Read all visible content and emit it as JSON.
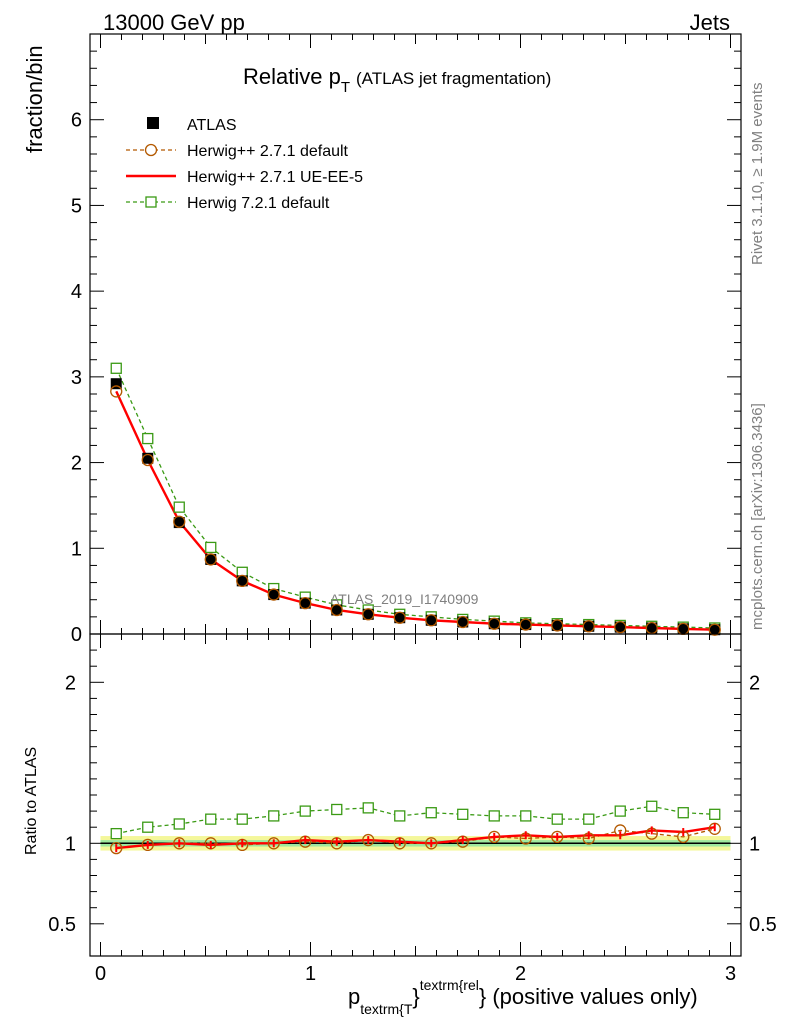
{
  "header": {
    "energy_label": "13000 GeV pp",
    "process_label": "Jets"
  },
  "side_labels": {
    "rivet": "Rivet 3.1.10, ≥ 1.9M events",
    "mcplots": "mcplots.cern.ch [arXiv:1306.3436]"
  },
  "chart_data": [
    {
      "type": "scatter",
      "title_main": "Relative p",
      "title_sub": "T",
      "title_rest": "(ATLAS jet fragmentation)",
      "analysis_label": "ATLAS_2019_I1740909",
      "ylabel": "fraction/bin",
      "xlim": [
        -0.05,
        3.05
      ],
      "ylim": [
        0,
        7
      ],
      "yticks": [
        0,
        1,
        2,
        3,
        4,
        5,
        6
      ],
      "ytick_labels": [
        "0",
        "1",
        "2",
        "3",
        "4",
        "5",
        "6"
      ],
      "x": [
        0.075,
        0.225,
        0.375,
        0.525,
        0.675,
        0.825,
        0.975,
        1.125,
        1.275,
        1.425,
        1.575,
        1.725,
        1.875,
        2.025,
        2.175,
        2.325,
        2.475,
        2.625,
        2.775,
        2.925
      ],
      "series": [
        {
          "name": "ATLAS",
          "color": "#000000",
          "values": [
            2.92,
            2.05,
            1.3,
            0.87,
            0.62,
            0.46,
            0.36,
            0.28,
            0.23,
            0.19,
            0.16,
            0.14,
            0.12,
            0.11,
            0.1,
            0.09,
            0.08,
            0.07,
            0.06,
            0.05
          ]
        },
        {
          "name": "Herwig++ 2.7.1 default",
          "color": "#b35900",
          "values": [
            2.83,
            2.03,
            1.31,
            0.87,
            0.62,
            0.46,
            0.36,
            0.28,
            0.23,
            0.19,
            0.16,
            0.14,
            0.12,
            0.11,
            0.1,
            0.09,
            0.08,
            0.07,
            0.06,
            0.05
          ]
        },
        {
          "name": "Herwig++ 2.7.1 UE-EE-5",
          "color": "#ff0000",
          "values": [
            2.83,
            2.03,
            1.31,
            0.87,
            0.62,
            0.46,
            0.36,
            0.28,
            0.23,
            0.19,
            0.16,
            0.14,
            0.12,
            0.11,
            0.1,
            0.09,
            0.08,
            0.07,
            0.06,
            0.05
          ]
        },
        {
          "name": "Herwig 7.2.1 default",
          "color": "#3a9a14",
          "values": [
            3.1,
            2.28,
            1.48,
            1.01,
            0.72,
            0.53,
            0.43,
            0.34,
            0.28,
            0.23,
            0.2,
            0.17,
            0.15,
            0.13,
            0.12,
            0.11,
            0.1,
            0.09,
            0.08,
            0.07
          ]
        }
      ]
    },
    {
      "type": "line",
      "ylabel": "Ratio to ATLAS",
      "xlabel_main": "p",
      "xlabel_sub": "textrm{T",
      "xlabel_sup": "textrm{rel",
      "xlabel_close": "}",
      "xlabel_rest": "} (positive values only)",
      "xlim": [
        -0.05,
        3.05
      ],
      "ylim": [
        0.3,
        2.3
      ],
      "yticks": [
        0.5,
        1,
        2
      ],
      "ytick_labels": [
        "0.5",
        "1",
        "2"
      ],
      "xticks": [
        0,
        1,
        2,
        3
      ],
      "xtick_labels": [
        "0",
        "1",
        "2",
        "3"
      ],
      "band_inner": [
        0.98,
        1.02
      ],
      "band_outer": [
        0.955,
        1.045
      ],
      "series": [
        {
          "name": "Herwig++ 2.7.1 default",
          "values": [
            0.97,
            0.99,
            1.0,
            1.0,
            0.99,
            1.0,
            1.01,
            1.0,
            1.02,
            1.0,
            1.0,
            1.01,
            1.04,
            1.03,
            1.04,
            1.03,
            1.08,
            1.06,
            1.04,
            1.09
          ]
        },
        {
          "name": "Herwig++ 2.7.1 UE-EE-5",
          "values": [
            0.97,
            0.99,
            1.0,
            0.99,
            1.0,
            1.0,
            1.02,
            1.01,
            1.02,
            1.01,
            1.0,
            1.02,
            1.04,
            1.05,
            1.04,
            1.05,
            1.05,
            1.08,
            1.07,
            1.1
          ]
        },
        {
          "name": "Herwig 7.2.1 default",
          "values": [
            1.06,
            1.1,
            1.12,
            1.15,
            1.15,
            1.17,
            1.2,
            1.21,
            1.22,
            1.17,
            1.19,
            1.18,
            1.17,
            1.17,
            1.15,
            1.15,
            1.2,
            1.23,
            1.19,
            1.18
          ]
        }
      ]
    }
  ]
}
